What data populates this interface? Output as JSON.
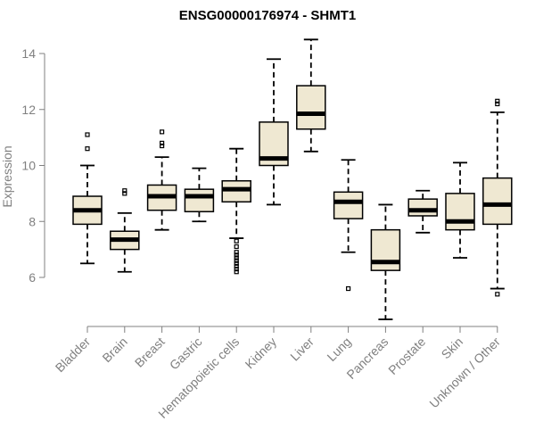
{
  "chart_data": {
    "type": "boxplot",
    "title": "ENSG00000176974 - SHMT1",
    "xlabel": "",
    "ylabel": "Expression",
    "ylim": [
      4.2,
      14.6
    ],
    "yticks": [
      6,
      8,
      10,
      12,
      14
    ],
    "categories": [
      "Bladder",
      "Brain",
      "Breast",
      "Gastric",
      "Hematopoietic cells",
      "Kidney",
      "Liver",
      "Lung",
      "Pancreas",
      "Prostate",
      "Skin",
      "Unknown / Other"
    ],
    "boxes": [
      {
        "min": 6.5,
        "q1": 7.9,
        "median": 8.4,
        "q3": 8.9,
        "max": 10.0,
        "outliers": [
          10.6,
          11.1
        ]
      },
      {
        "min": 6.2,
        "q1": 7.0,
        "median": 7.35,
        "q3": 7.65,
        "max": 8.3,
        "outliers": [
          9.0,
          9.1
        ]
      },
      {
        "min": 7.7,
        "q1": 8.4,
        "median": 8.9,
        "q3": 9.3,
        "max": 10.3,
        "outliers": [
          10.7,
          10.8,
          11.2
        ]
      },
      {
        "min": 8.0,
        "q1": 8.35,
        "median": 8.9,
        "q3": 9.15,
        "max": 9.9,
        "outliers": []
      },
      {
        "min": 7.4,
        "q1": 8.7,
        "median": 9.15,
        "q3": 9.45,
        "max": 10.6,
        "outliers": [
          7.3,
          7.1,
          6.9,
          6.8,
          6.7,
          6.6,
          6.5,
          6.4,
          6.3,
          6.2
        ]
      },
      {
        "min": 8.6,
        "q1": 10.0,
        "median": 10.25,
        "q3": 11.55,
        "max": 13.8,
        "outliers": []
      },
      {
        "min": 10.5,
        "q1": 11.3,
        "median": 11.85,
        "q3": 12.85,
        "max": 14.5,
        "outliers": []
      },
      {
        "min": 6.9,
        "q1": 8.1,
        "median": 8.7,
        "q3": 9.05,
        "max": 10.2,
        "outliers": [
          5.6
        ]
      },
      {
        "min": 4.5,
        "q1": 6.25,
        "median": 6.55,
        "q3": 7.7,
        "max": 8.6,
        "outliers": []
      },
      {
        "min": 7.6,
        "q1": 8.2,
        "median": 8.4,
        "q3": 8.8,
        "max": 9.1,
        "outliers": []
      },
      {
        "min": 6.7,
        "q1": 7.7,
        "median": 8.0,
        "q3": 9.0,
        "max": 10.1,
        "outliers": []
      },
      {
        "min": 5.6,
        "q1": 7.9,
        "median": 8.6,
        "q3": 9.55,
        "max": 11.9,
        "outliers": [
          12.2,
          12.3,
          5.4
        ]
      }
    ],
    "colors": {
      "box_fill": "#efe8d2",
      "stroke": "#000000",
      "axis": "#808080"
    }
  }
}
